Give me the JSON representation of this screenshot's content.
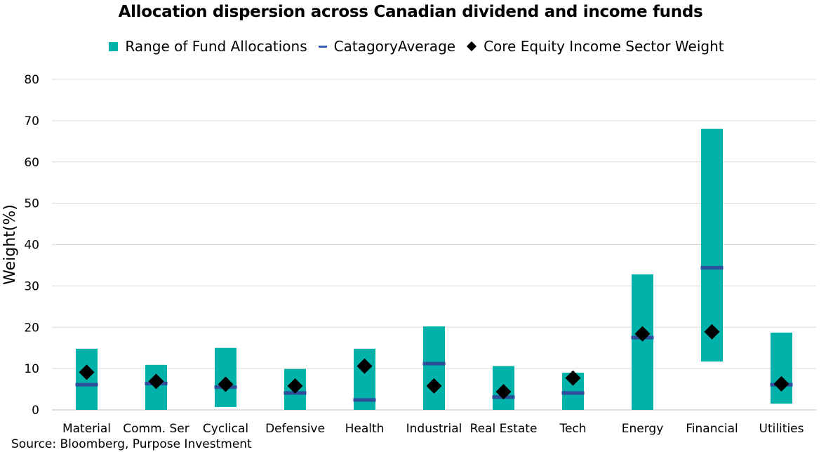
{
  "chart_data": {
    "type": "bar",
    "title": "Allocation dispersion across Canadian dividend and income funds",
    "ylabel": "Weight(%)",
    "xlabel": "",
    "ylim": [
      0,
      80
    ],
    "yticks": [
      0,
      10,
      20,
      30,
      40,
      50,
      60,
      70,
      80
    ],
    "grid": true,
    "legend_position": "top",
    "categories": [
      "Material",
      "Comm. Ser",
      "Cyclical",
      "Defensive",
      "Health",
      "Industrial",
      "Real Estate",
      "Tech",
      "Energy",
      "Financial",
      "Utilities"
    ],
    "series": [
      {
        "name": "Range of Fund Allocations",
        "kind": "floating-bar",
        "color": "#00b2a9",
        "low": [
          0,
          0,
          0.7,
          0,
          0,
          0,
          0,
          0,
          0,
          11.7,
          1.5
        ],
        "high": [
          14.8,
          10.9,
          15.0,
          9.9,
          14.8,
          20.2,
          10.6,
          9.0,
          32.8,
          68.0,
          18.7
        ]
      },
      {
        "name": "CatagoryAverage",
        "kind": "dash",
        "color": "#2e4d9b",
        "values": [
          6.1,
          6.4,
          5.5,
          4.1,
          2.4,
          11.2,
          3.1,
          4.1,
          17.5,
          34.4,
          6.1
        ]
      },
      {
        "name": "Core Equity Income Sector Weight",
        "kind": "diamond",
        "color": "#000000",
        "values": [
          9.1,
          6.9,
          6.2,
          5.8,
          10.6,
          5.8,
          4.4,
          7.7,
          18.4,
          18.9,
          6.3
        ]
      }
    ]
  },
  "source_note": "Source: Bloomberg, Purpose Investment"
}
